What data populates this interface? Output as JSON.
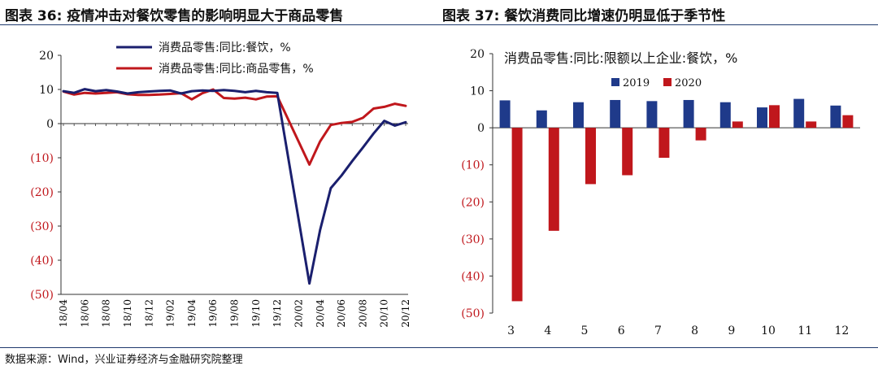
{
  "header": {
    "left_title": "图表 36:  疫情冲击对餐饮零售的影响明显大于商品零售",
    "right_title": "图表 37:  餐饮消费同比增速仍明显低于季节性"
  },
  "footer": {
    "source": "数据来源：Wind，兴业证券经济与金融研究院整理"
  },
  "colors": {
    "navy": "#1a1f6e",
    "red": "#c0171c",
    "blue2019": "#1f3a8a",
    "red2020": "#c0171c"
  },
  "chart_data": [
    {
      "type": "line",
      "x": [
        "18/04",
        "18/05",
        "18/06",
        "18/07",
        "18/08",
        "18/09",
        "18/10",
        "18/11",
        "18/12",
        "19/01",
        "19/02",
        "19/03",
        "19/04",
        "19/05",
        "19/06",
        "19/07",
        "19/08",
        "19/09",
        "19/10",
        "19/11",
        "19/12",
        "20/01",
        "20/02",
        "20/03",
        "20/04",
        "20/05",
        "20/06",
        "20/07",
        "20/08",
        "20/09",
        "20/10",
        "20/11",
        "20/12"
      ],
      "x_tick_labels": [
        "18/04",
        "18/06",
        "18/08",
        "18/10",
        "18/12",
        "19/02",
        "19/04",
        "19/06",
        "19/08",
        "19/10",
        "19/12",
        "20/02",
        "20/04",
        "20/06",
        "20/08",
        "20/10",
        "20/12"
      ],
      "series": [
        {
          "name": "消费品零售:同比:餐饮，%",
          "color": "#1a1f6e",
          "values": [
            9.5,
            9.0,
            10.1,
            9.5,
            9.8,
            9.4,
            8.8,
            9.2,
            9.4,
            9.6,
            9.7,
            8.8,
            9.5,
            9.7,
            9.6,
            9.8,
            9.6,
            9.2,
            9.6,
            9.2,
            9.0,
            null,
            null,
            -46.8,
            -31.1,
            -18.9,
            -15.2,
            -11.0,
            -7.0,
            -2.9,
            0.8,
            -0.6,
            0.4
          ]
        },
        {
          "name": "消费品零售:同比:商品零售，%",
          "color": "#c0171c",
          "values": [
            9.4,
            8.5,
            9.0,
            8.8,
            9.0,
            9.2,
            8.6,
            8.4,
            8.4,
            8.5,
            8.7,
            8.9,
            7.1,
            8.9,
            10.0,
            7.5,
            7.3,
            7.6,
            7.1,
            7.9,
            8.0,
            null,
            null,
            -12.0,
            -5.2,
            -0.4,
            0.2,
            0.5,
            1.7,
            4.4,
            4.9,
            5.8,
            5.2
          ]
        }
      ],
      "y_ticks": [
        "20",
        "10",
        "0",
        "(10)",
        "(20)",
        "(30)",
        "(40)",
        "(50)"
      ],
      "ylim": [
        -50,
        20
      ],
      "grid": false,
      "legend_position": "top"
    },
    {
      "type": "bar",
      "title": "消费品零售:同比:限额以上企业:餐饮，%",
      "categories": [
        "3",
        "4",
        "5",
        "6",
        "7",
        "8",
        "9",
        "10",
        "11",
        "12"
      ],
      "series": [
        {
          "name": "2019",
          "color": "#1f3a8a",
          "values": [
            7.4,
            4.7,
            6.9,
            7.5,
            7.2,
            7.5,
            6.9,
            5.5,
            7.8,
            6.0
          ]
        },
        {
          "name": "2020",
          "color": "#c0171c",
          "values": [
            -46.8,
            -27.8,
            -15.2,
            -12.8,
            -8.1,
            -3.4,
            1.7,
            6.1,
            1.7,
            3.4
          ]
        }
      ],
      "y_ticks": [
        "20",
        "10",
        "0",
        "(10)",
        "(20)",
        "(30)",
        "(40)",
        "(50)"
      ],
      "ylim": [
        -50,
        20
      ],
      "grid": false,
      "legend_position": "top-left"
    }
  ]
}
